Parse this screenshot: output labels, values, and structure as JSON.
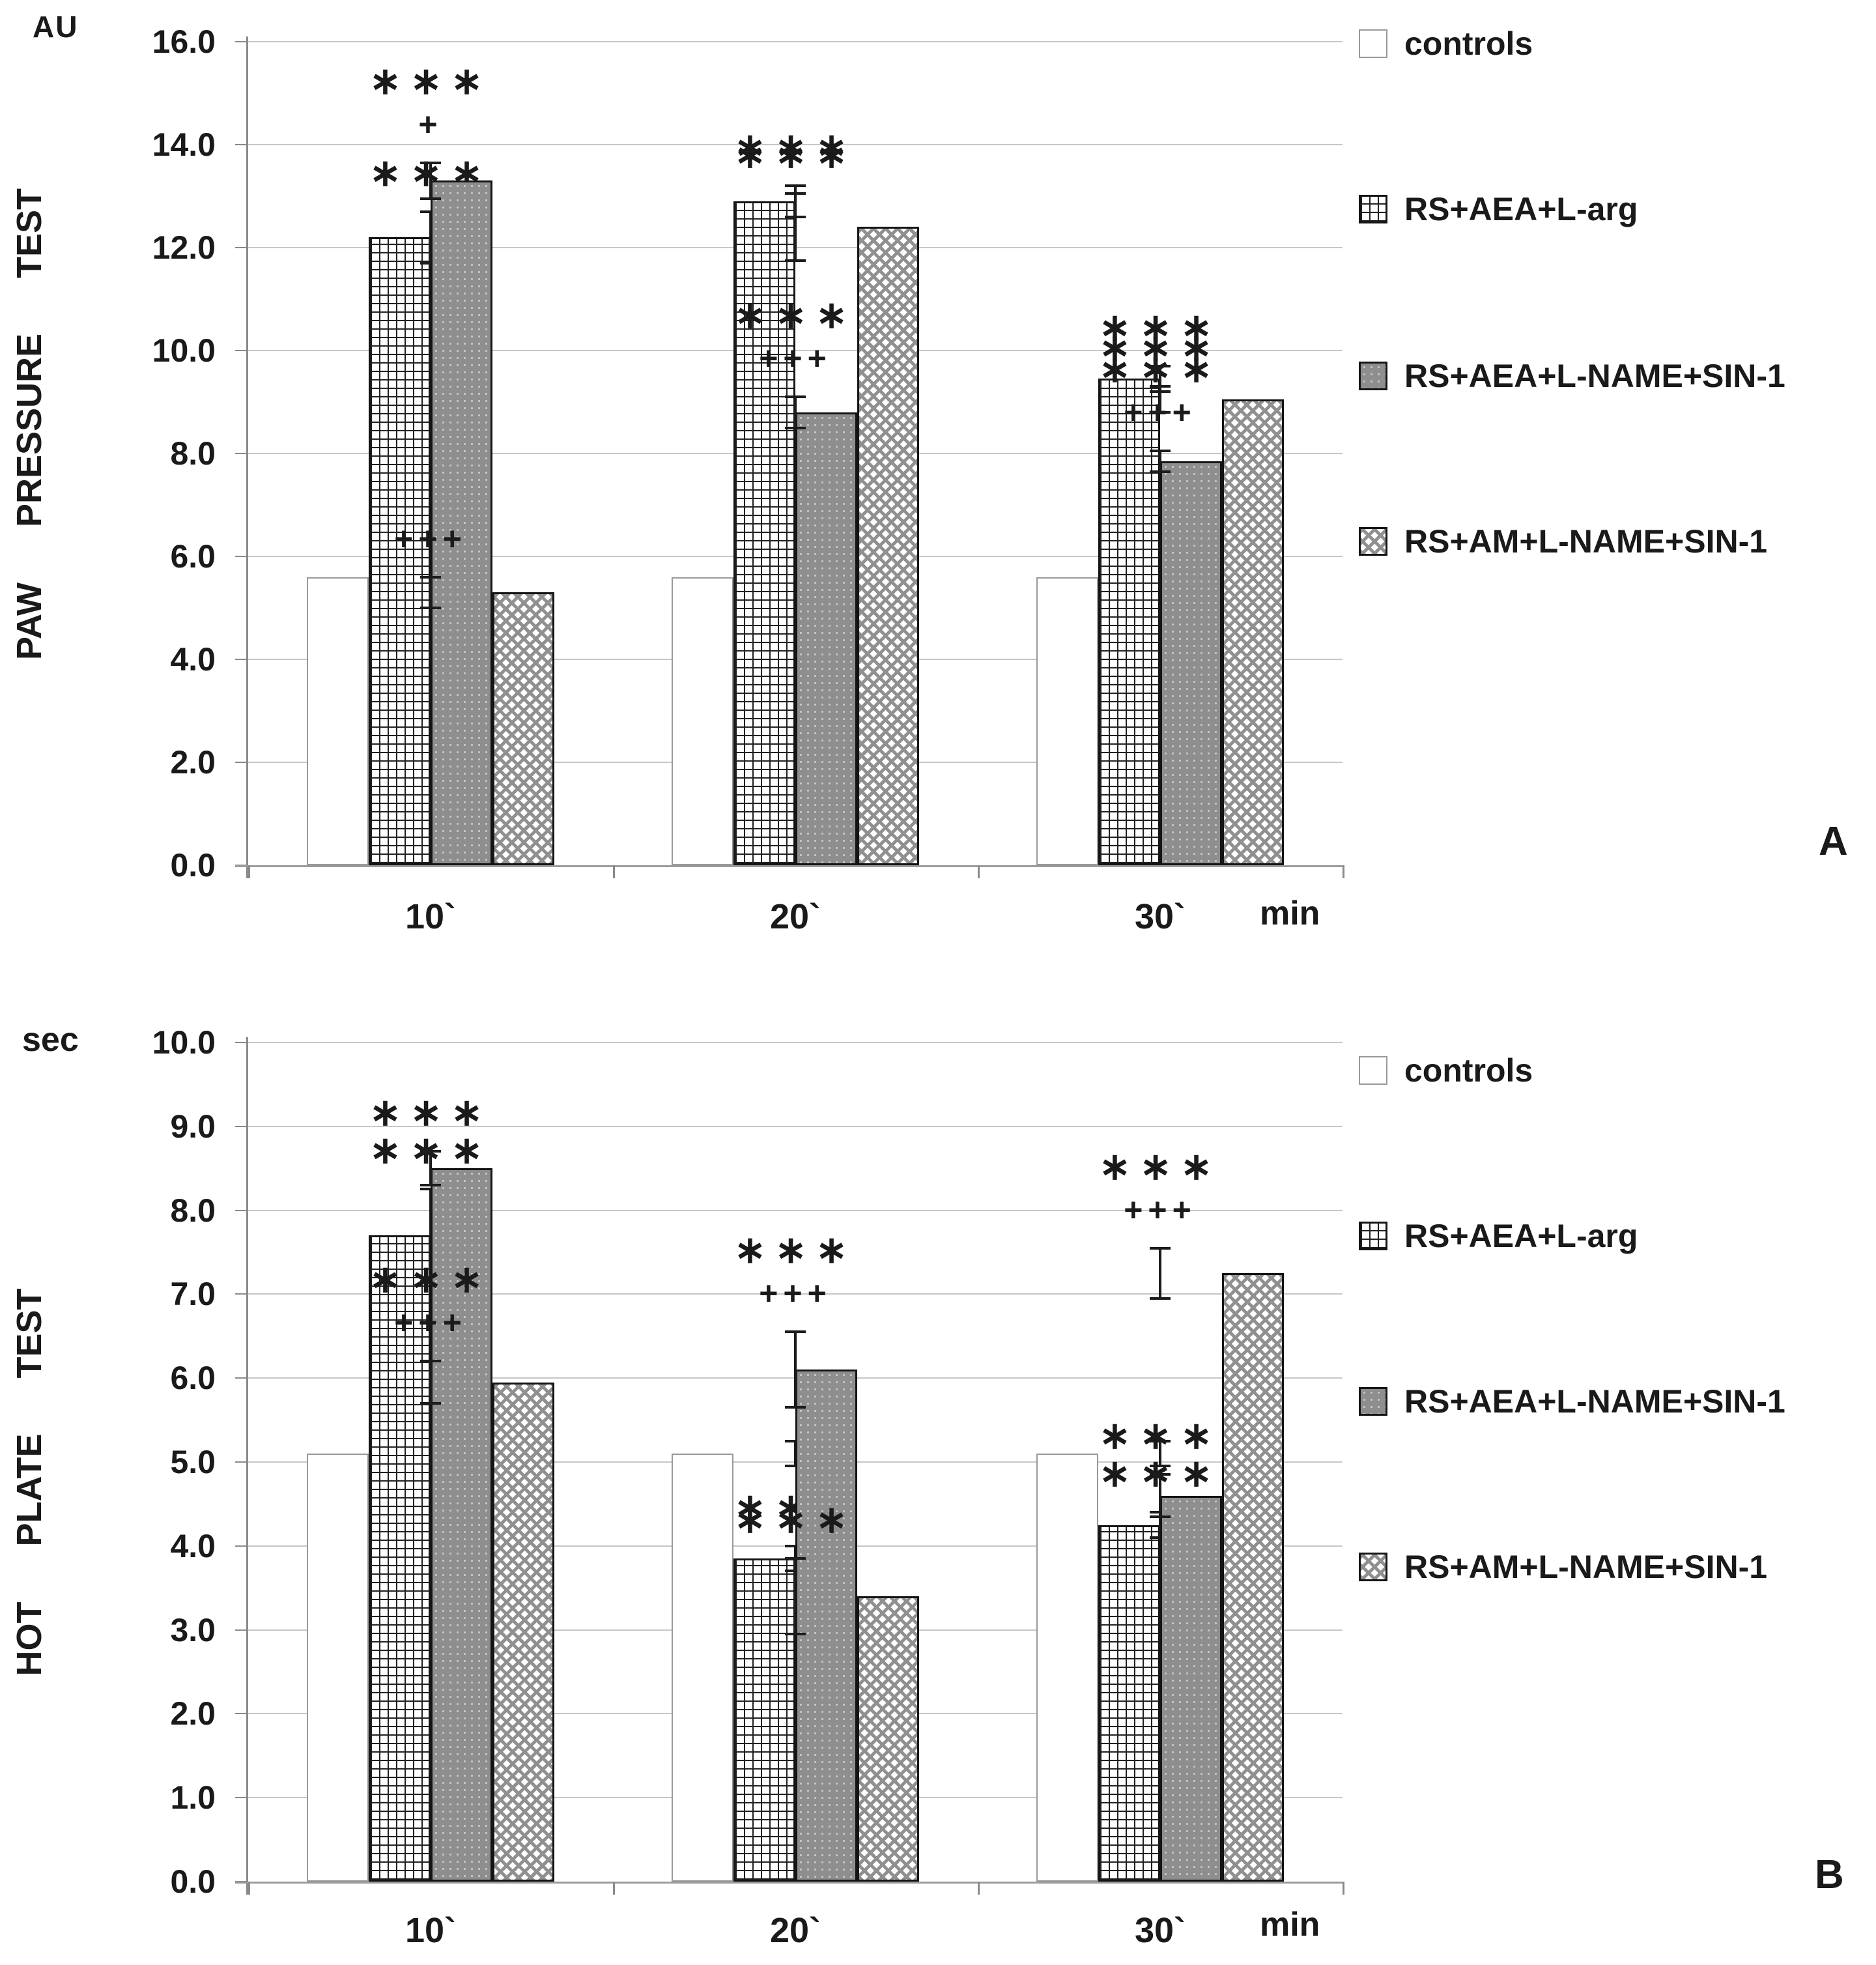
{
  "chart_data": [
    {
      "type": "bar",
      "title": "PAW PRESSURE TEST",
      "y_unit": "AU",
      "x_unit": "min",
      "ylim": [
        0,
        16
      ],
      "ytick_step": 2,
      "grid": "horizontal",
      "legend_position": "right",
      "categories": [
        "10`",
        "20`",
        "30`"
      ],
      "series": [
        {
          "name": "controls",
          "pattern": "white",
          "values": [
            5.6,
            5.6,
            5.6
          ],
          "errors": [
            0.2,
            0.2,
            0.2
          ],
          "annotations": [
            [],
            [],
            []
          ]
        },
        {
          "name": "RS+AEA+L-arg",
          "pattern": "crosshatch",
          "values": [
            12.2,
            12.9,
            9.45
          ],
          "errors": [
            0.5,
            0.3,
            0.25
          ],
          "annotations": [
            [
              "***"
            ],
            [
              "***"
            ],
            [
              "***"
            ]
          ]
        },
        {
          "name": "RS+AEA+L-NAME+SIN-1",
          "pattern": "dark-dots",
          "values": [
            13.3,
            8.8,
            7.85
          ],
          "errors": [
            0.35,
            0.3,
            0.2
          ],
          "annotations": [
            [
              "***",
              "+"
            ],
            [
              "***",
              "+++"
            ],
            [
              "***",
              "+++"
            ]
          ]
        },
        {
          "name": "RS+AM+L-NAME+SIN-1",
          "pattern": "checker",
          "values": [
            5.3,
            12.4,
            9.05
          ],
          "errors": [
            0.3,
            0.65,
            0.25
          ],
          "annotations": [
            [
              "+++"
            ],
            [
              "***"
            ],
            [
              "***"
            ]
          ]
        }
      ]
    },
    {
      "type": "bar",
      "title": "HOT PLATE TEST",
      "y_unit": "sec",
      "x_unit": "min",
      "ylim": [
        0,
        10
      ],
      "ytick_step": 1,
      "grid": "horizontal",
      "legend_position": "right",
      "categories": [
        "10`",
        "20`",
        "30`"
      ],
      "series": [
        {
          "name": "controls",
          "pattern": "white",
          "values": [
            5.1,
            5.1,
            5.1
          ],
          "errors": [
            0.15,
            0.15,
            0.15
          ],
          "annotations": [
            [],
            [],
            []
          ]
        },
        {
          "name": "RS+AEA+L-arg",
          "pattern": "crosshatch",
          "values": [
            7.7,
            3.85,
            4.25
          ],
          "errors": [
            0.55,
            0.15,
            0.15
          ],
          "annotations": [
            [
              "***"
            ],
            [
              "***"
            ],
            [
              "***"
            ]
          ]
        },
        {
          "name": "RS+AEA+L-NAME+SIN-1",
          "pattern": "dark-dots",
          "values": [
            8.5,
            6.1,
            4.6
          ],
          "errors": [
            0.2,
            0.45,
            0.25
          ],
          "annotations": [
            [
              "***"
            ],
            [
              "***",
              "+++"
            ],
            [
              "***"
            ]
          ]
        },
        {
          "name": "RS+AM+L-NAME+SIN-1",
          "pattern": "checker",
          "values": [
            5.95,
            3.4,
            7.25
          ],
          "errors": [
            0.25,
            0.45,
            0.3
          ],
          "annotations": [
            [
              "***",
              "+++"
            ],
            [
              "***"
            ],
            [
              "***",
              "+++"
            ]
          ]
        }
      ]
    }
  ],
  "panels": [
    {
      "letter": "A",
      "unit_label": "AU",
      "x_unit_label": "min",
      "y_ticks": [
        "16.0",
        "14.0",
        "12.0",
        "10.0",
        "8.0",
        "6.0",
        "4.0",
        "2.0",
        "0.0"
      ]
    },
    {
      "letter": "B",
      "unit_label": "sec",
      "x_unit_label": "min",
      "y_ticks": [
        "10.0",
        "9.0",
        "8.0",
        "7.0",
        "6.0",
        "5.0",
        "4.0",
        "3.0",
        "2.0",
        "1.0",
        "0.0"
      ]
    }
  ]
}
